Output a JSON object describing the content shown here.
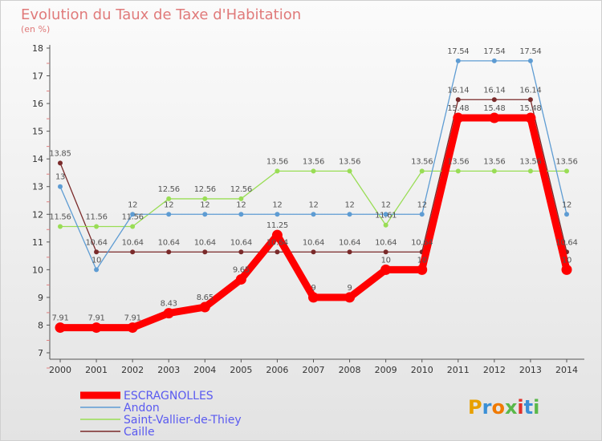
{
  "chart_data": {
    "type": "line",
    "title": "Evolution du Taux de Taxe d'Habitation",
    "subtitle": "(en %)",
    "x": [
      "2000",
      "2001",
      "2002",
      "2003",
      "2004",
      "2005",
      "2006",
      "2007",
      "2008",
      "2009",
      "2010",
      "2011",
      "2012",
      "2013",
      "2014"
    ],
    "ylim": [
      7,
      18
    ],
    "yticks": [
      7,
      8,
      9,
      10,
      11,
      12,
      13,
      14,
      15,
      16,
      17,
      18
    ],
    "grid": false,
    "legend_position": "bottom-left",
    "series": [
      {
        "name": "ESCRAGNOLLES",
        "color": "#ff0000",
        "values": [
          7.91,
          7.91,
          7.91,
          8.43,
          8.65,
          9.65,
          11.25,
          9,
          9,
          10,
          10,
          15.48,
          15.48,
          15.48,
          10
        ],
        "labels": [
          "7.91",
          "7.91",
          "7.91",
          "8.43",
          "8.65",
          "9.65",
          "11.25",
          "9",
          "9",
          "10",
          "10",
          "15.48",
          "15.48",
          "15.48",
          "10"
        ]
      },
      {
        "name": "Andon",
        "color": "#5e9cd3",
        "values": [
          13,
          10,
          12,
          12,
          12,
          12,
          12,
          12,
          12,
          12,
          12,
          17.54,
          17.54,
          17.54,
          12
        ],
        "labels": [
          "13",
          "10",
          "12",
          "12",
          "12",
          "12",
          "12",
          "12",
          "12",
          "12",
          "12",
          "17.54",
          "17.54",
          "17.54",
          "12"
        ]
      },
      {
        "name": "Saint-Vallier-de-Thiey",
        "color": "#99dd55",
        "values": [
          11.56,
          11.56,
          11.56,
          12.56,
          12.56,
          12.56,
          13.56,
          13.56,
          13.56,
          11.61,
          13.56,
          13.56,
          13.56,
          13.56,
          13.56
        ],
        "labels": [
          "11.56",
          "11.56",
          "11.56",
          "12.56",
          "12.56",
          "12.56",
          "13.56",
          "13.56",
          "13.56",
          "11.61",
          "13.56",
          "13.56",
          "13.56",
          "13.56",
          "13.56"
        ]
      },
      {
        "name": "Caille",
        "color": "#7a2a2a",
        "values": [
          13.85,
          10.64,
          10.64,
          10.64,
          10.64,
          10.64,
          10.64,
          10.64,
          10.64,
          10.64,
          10.64,
          16.14,
          16.14,
          16.14,
          10.64
        ],
        "labels": [
          "13.85",
          "10.64",
          "10.64",
          "10.64",
          "10.64",
          "10.64",
          "10.64",
          "10.64",
          "10.64",
          "10.64",
          "10.64",
          "16.14",
          "16.14",
          "16.14",
          "10.64"
        ]
      }
    ]
  },
  "logo": {
    "text": "Proxiti",
    "colors": [
      "#e8a000",
      "#3a8fd6",
      "#f07a00",
      "#5ab84a",
      "#e0302a",
      "#3a8fd6",
      "#5ab84a"
    ]
  }
}
